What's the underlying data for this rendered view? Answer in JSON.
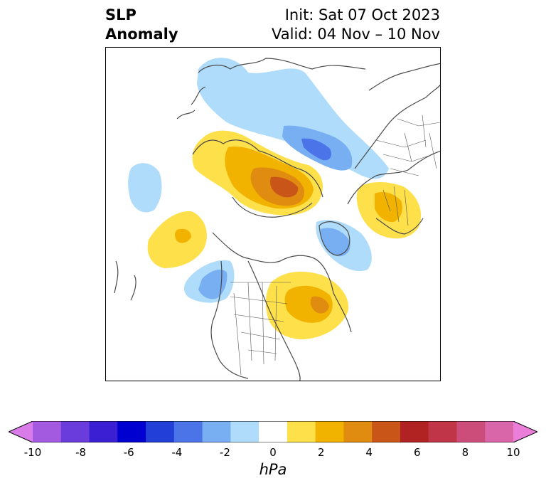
{
  "header": {
    "title_line1": "SLP",
    "title_line2": "Anomaly",
    "init": "Init: Sat 07 Oct 2023",
    "valid": "Valid: 04 Nov – 10 Nov"
  },
  "colorbar": {
    "units": "hPa",
    "tick_labels": [
      "-10",
      "-8",
      "-6",
      "-4",
      "-2",
      "0",
      "2",
      "4",
      "6",
      "8",
      "10"
    ],
    "tick_values": [
      -10,
      -8,
      -6,
      -4,
      -2,
      0,
      2,
      4,
      6,
      8,
      10
    ],
    "colors": [
      "#d97be8",
      "#a35ae0",
      "#6b3cdc",
      "#3b1fd2",
      "#0000d0",
      "#2240d8",
      "#4a74e8",
      "#78aef2",
      "#aedcfa",
      "#ffffff",
      "#fee04a",
      "#f1b200",
      "#e08c10",
      "#c95518",
      "#b02322",
      "#c03648",
      "#cc4d7a",
      "#d866a8",
      "#ea7ed8"
    ],
    "under_color": "#d97be8",
    "over_color": "#ea7ed8"
  },
  "map": {
    "projection": "north-polar stereographic",
    "variable": "sea level pressure anomaly",
    "anomaly_colors": {
      "neg1": "#aedcfa",
      "neg2": "#78aef2",
      "neg3": "#4a74e8",
      "pos1": "#fee04a",
      "pos2": "#f1b200",
      "pos3": "#e08c10",
      "pos4": "#c95518"
    }
  }
}
